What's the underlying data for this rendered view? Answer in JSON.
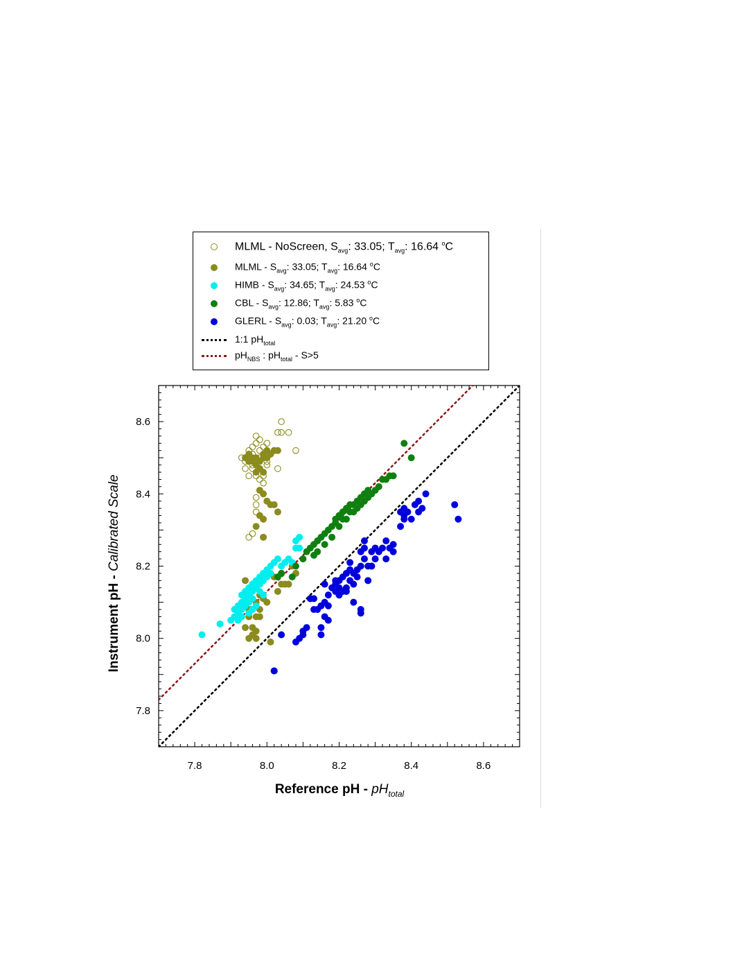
{
  "chart_data": {
    "type": "scatter",
    "xlabel": "Reference pH - pH",
    "xlabel_prefix": "Reference pH - ",
    "xlabel_var": "pH",
    "xlabel_sub": "total",
    "ylabel": "Instrument pH - Calibrated Scale",
    "ylabel_prefix": "Instrument pH - ",
    "ylabel_italic": "Calibrated Scale",
    "xlim": [
      7.7,
      8.7
    ],
    "ylim": [
      7.7,
      8.7
    ],
    "xticks": [
      "7.8",
      "8.0",
      "8.2",
      "8.4",
      "8.6"
    ],
    "yticks": [
      "7.8",
      "8.0",
      "8.2",
      "8.4",
      "8.6"
    ],
    "grid": false,
    "legend_position": "above",
    "legend": [
      {
        "key": "mlml_noscreen",
        "parts": [
          "MLML - NoScreen, S",
          "avg",
          ": 33.05; T",
          "avg",
          ": 16.64 ",
          "o",
          "C"
        ]
      },
      {
        "key": "mlml",
        "parts": [
          "MLML - S",
          "avg",
          ": 33.05; T",
          "avg",
          ": 16.64 ",
          "o",
          "C"
        ]
      },
      {
        "key": "himb",
        "parts": [
          "HIMB - S",
          "avg",
          ": 34.65; T",
          "avg",
          ": 24.53 ",
          "o",
          "C"
        ]
      },
      {
        "key": "cbl",
        "parts": [
          "CBL - S",
          "avg",
          ": 12.86; T",
          "avg",
          ": 5.83 ",
          "o",
          "C"
        ]
      },
      {
        "key": "glerl",
        "parts": [
          "GLERL - S",
          "avg",
          ": 0.03; T",
          "avg",
          ": 21.20 ",
          "o",
          "C"
        ]
      },
      {
        "key": "line_11",
        "parts": [
          "1:1 pH",
          "total"
        ]
      },
      {
        "key": "line_nbs",
        "parts": [
          "pH",
          "NBS",
          " : pH",
          "total",
          " - S>5"
        ]
      }
    ],
    "lines": [
      {
        "key": "line_11",
        "color": "#000000",
        "style": "dotted",
        "x": [
          7.7,
          8.7
        ],
        "y": [
          7.7,
          8.7
        ]
      },
      {
        "key": "line_nbs",
        "color": "#8b1a1a",
        "style": "dotted",
        "x": [
          7.7,
          8.57
        ],
        "y": [
          7.83,
          8.7
        ]
      }
    ],
    "series": [
      {
        "key": "mlml_noscreen",
        "color": "#8b8b1e",
        "hollow": true,
        "points": [
          [
            7.94,
            8.49
          ],
          [
            7.95,
            8.5
          ],
          [
            7.95,
            8.52
          ],
          [
            7.96,
            8.51
          ],
          [
            7.96,
            8.53
          ],
          [
            7.97,
            8.5
          ],
          [
            7.97,
            8.54
          ],
          [
            7.98,
            8.55
          ],
          [
            7.98,
            8.52
          ],
          [
            7.99,
            8.53
          ],
          [
            7.99,
            8.51
          ],
          [
            8.0,
            8.54
          ],
          [
            8.0,
            8.5
          ],
          [
            7.97,
            8.56
          ],
          [
            7.96,
            8.48
          ],
          [
            7.95,
            8.45
          ],
          [
            7.97,
            8.45
          ],
          [
            7.96,
            8.47
          ],
          [
            7.98,
            8.47
          ],
          [
            8.0,
            8.48
          ],
          [
            8.01,
            8.51
          ],
          [
            8.02,
            8.52
          ],
          [
            8.03,
            8.57
          ],
          [
            8.04,
            8.6
          ],
          [
            8.04,
            8.57
          ],
          [
            8.06,
            8.57
          ],
          [
            8.08,
            8.52
          ],
          [
            8.03,
            8.47
          ],
          [
            7.99,
            8.45
          ],
          [
            7.99,
            8.43
          ],
          [
            7.98,
            8.44
          ],
          [
            7.97,
            8.39
          ],
          [
            7.97,
            8.37
          ],
          [
            7.97,
            8.35
          ],
          [
            7.99,
            8.33
          ],
          [
            7.95,
            8.28
          ],
          [
            7.96,
            8.29
          ],
          [
            7.93,
            8.5
          ],
          [
            7.94,
            8.47
          ],
          [
            7.98,
            8.5
          ],
          [
            7.96,
            8.49
          ],
          [
            8.0,
            8.49
          ]
        ]
      },
      {
        "key": "mlml",
        "color": "#8b8b1e",
        "hollow": false,
        "points": [
          [
            7.94,
            8.5
          ],
          [
            7.95,
            8.49
          ],
          [
            7.95,
            8.51
          ],
          [
            7.96,
            8.5
          ],
          [
            7.96,
            8.49
          ],
          [
            7.97,
            8.5
          ],
          [
            7.97,
            8.48
          ],
          [
            7.98,
            8.49
          ],
          [
            7.98,
            8.47
          ],
          [
            7.99,
            8.5
          ],
          [
            7.99,
            8.51
          ],
          [
            8.0,
            8.5
          ],
          [
            8.0,
            8.52
          ],
          [
            8.01,
            8.51
          ],
          [
            8.02,
            8.52
          ],
          [
            8.03,
            8.52
          ],
          [
            7.97,
            8.46
          ],
          [
            7.99,
            8.46
          ],
          [
            7.98,
            8.41
          ],
          [
            7.99,
            8.4
          ],
          [
            8.0,
            8.38
          ],
          [
            8.01,
            8.37
          ],
          [
            8.02,
            8.37
          ],
          [
            8.03,
            8.35
          ],
          [
            7.98,
            8.34
          ],
          [
            7.99,
            8.33
          ],
          [
            7.97,
            8.31
          ],
          [
            7.99,
            8.28
          ],
          [
            7.94,
            8.16
          ],
          [
            7.96,
            8.15
          ],
          [
            7.97,
            8.1
          ],
          [
            7.98,
            8.12
          ],
          [
            7.99,
            8.11
          ],
          [
            8.0,
            8.1
          ],
          [
            7.98,
            8.08
          ],
          [
            7.96,
            8.08
          ],
          [
            7.95,
            8.06
          ],
          [
            7.97,
            8.06
          ],
          [
            7.98,
            8.06
          ],
          [
            7.96,
            8.03
          ],
          [
            7.97,
            8.02
          ],
          [
            7.96,
            8.01
          ],
          [
            7.95,
            8.0
          ],
          [
            7.97,
            8.0
          ],
          [
            8.01,
            7.99
          ],
          [
            8.03,
            8.13
          ],
          [
            8.04,
            8.15
          ],
          [
            8.05,
            8.15
          ],
          [
            8.06,
            8.15
          ],
          [
            8.07,
            8.2
          ],
          [
            8.08,
            8.18
          ],
          [
            8.04,
            8.18
          ],
          [
            8.02,
            8.17
          ],
          [
            7.95,
            8.08
          ],
          [
            7.94,
            8.03
          ]
        ]
      },
      {
        "key": "himb",
        "color": "#00eeee",
        "hollow": false,
        "points": [
          [
            7.82,
            8.01
          ],
          [
            7.87,
            8.04
          ],
          [
            7.9,
            8.05
          ],
          [
            7.91,
            8.06
          ],
          [
            7.91,
            8.08
          ],
          [
            7.92,
            8.07
          ],
          [
            7.92,
            8.09
          ],
          [
            7.93,
            8.1
          ],
          [
            7.93,
            8.12
          ],
          [
            7.94,
            8.11
          ],
          [
            7.94,
            8.13
          ],
          [
            7.95,
            8.12
          ],
          [
            7.95,
            8.14
          ],
          [
            7.96,
            8.13
          ],
          [
            7.96,
            8.15
          ],
          [
            7.97,
            8.14
          ],
          [
            7.97,
            8.16
          ],
          [
            7.98,
            8.15
          ],
          [
            7.98,
            8.17
          ],
          [
            7.99,
            8.16
          ],
          [
            7.99,
            8.18
          ],
          [
            8.0,
            8.17
          ],
          [
            8.0,
            8.19
          ],
          [
            8.01,
            8.18
          ],
          [
            8.01,
            8.2
          ],
          [
            8.02,
            8.21
          ],
          [
            8.03,
            8.22
          ],
          [
            8.04,
            8.2
          ],
          [
            8.05,
            8.21
          ],
          [
            8.06,
            8.22
          ],
          [
            8.07,
            8.21
          ],
          [
            8.08,
            8.25
          ],
          [
            8.08,
            8.27
          ],
          [
            8.09,
            8.28
          ],
          [
            8.09,
            8.25
          ],
          [
            7.93,
            8.08
          ],
          [
            7.94,
            8.09
          ],
          [
            7.95,
            8.1
          ],
          [
            7.96,
            8.11
          ],
          [
            7.97,
            8.09
          ],
          [
            7.92,
            8.05
          ],
          [
            7.93,
            8.06
          ],
          [
            7.95,
            8.07
          ],
          [
            7.96,
            8.08
          ],
          [
            7.98,
            8.13
          ],
          [
            7.99,
            8.12
          ]
        ]
      },
      {
        "key": "cbl",
        "color": "#0f800f",
        "hollow": false,
        "points": [
          [
            8.07,
            8.17
          ],
          [
            8.1,
            8.22
          ],
          [
            8.11,
            8.24
          ],
          [
            8.12,
            8.25
          ],
          [
            8.13,
            8.26
          ],
          [
            8.14,
            8.27
          ],
          [
            8.15,
            8.28
          ],
          [
            8.16,
            8.29
          ],
          [
            8.17,
            8.3
          ],
          [
            8.18,
            8.31
          ],
          [
            8.19,
            8.32
          ],
          [
            8.19,
            8.33
          ],
          [
            8.2,
            8.34
          ],
          [
            8.21,
            8.35
          ],
          [
            8.22,
            8.36
          ],
          [
            8.23,
            8.37
          ],
          [
            8.24,
            8.35
          ],
          [
            8.25,
            8.36
          ],
          [
            8.25,
            8.38
          ],
          [
            8.26,
            8.37
          ],
          [
            8.26,
            8.39
          ],
          [
            8.27,
            8.38
          ],
          [
            8.27,
            8.4
          ],
          [
            8.28,
            8.39
          ],
          [
            8.29,
            8.4
          ],
          [
            8.3,
            8.41
          ],
          [
            8.31,
            8.42
          ],
          [
            8.32,
            8.44
          ],
          [
            8.33,
            8.44
          ],
          [
            8.34,
            8.45
          ],
          [
            8.35,
            8.45
          ],
          [
            8.38,
            8.54
          ],
          [
            8.4,
            8.5
          ],
          [
            8.22,
            8.33
          ],
          [
            8.21,
            8.33
          ],
          [
            8.23,
            8.35
          ],
          [
            8.13,
            8.23
          ],
          [
            8.14,
            8.24
          ],
          [
            8.16,
            8.26
          ],
          [
            8.18,
            8.28
          ],
          [
            8.2,
            8.31
          ],
          [
            8.24,
            8.37
          ],
          [
            8.28,
            8.41
          ],
          [
            8.03,
            8.17
          ],
          [
            8.04,
            8.18
          ],
          [
            8.08,
            8.2
          ]
        ]
      },
      {
        "key": "glerl",
        "color": "#0000dd",
        "hollow": false,
        "points": [
          [
            8.02,
            7.91
          ],
          [
            8.02,
            7.91
          ],
          [
            8.04,
            8.01
          ],
          [
            8.08,
            7.99
          ],
          [
            8.09,
            8.0
          ],
          [
            8.1,
            8.01
          ],
          [
            8.1,
            8.02
          ],
          [
            8.11,
            8.03
          ],
          [
            8.12,
            8.11
          ],
          [
            8.13,
            8.11
          ],
          [
            8.13,
            8.08
          ],
          [
            8.14,
            8.08
          ],
          [
            8.15,
            8.01
          ],
          [
            8.15,
            8.03
          ],
          [
            8.15,
            8.09
          ],
          [
            8.16,
            8.06
          ],
          [
            8.16,
            8.1
          ],
          [
            8.16,
            8.15
          ],
          [
            8.17,
            8.05
          ],
          [
            8.17,
            8.09
          ],
          [
            8.17,
            8.12
          ],
          [
            8.18,
            8.14
          ],
          [
            8.19,
            8.13
          ],
          [
            8.19,
            8.15
          ],
          [
            8.2,
            8.12
          ],
          [
            8.2,
            8.14
          ],
          [
            8.2,
            8.16
          ],
          [
            8.21,
            8.13
          ],
          [
            8.21,
            8.17
          ],
          [
            8.22,
            8.14
          ],
          [
            8.22,
            8.18
          ],
          [
            8.23,
            8.16
          ],
          [
            8.23,
            8.21
          ],
          [
            8.23,
            8.19
          ],
          [
            8.24,
            8.1
          ],
          [
            8.24,
            8.15
          ],
          [
            8.24,
            8.18
          ],
          [
            8.25,
            8.19
          ],
          [
            8.25,
            8.17
          ],
          [
            8.26,
            8.08
          ],
          [
            8.26,
            8.07
          ],
          [
            8.26,
            8.2
          ],
          [
            8.26,
            8.24
          ],
          [
            8.27,
            8.22
          ],
          [
            8.27,
            8.25
          ],
          [
            8.27,
            8.27
          ],
          [
            8.28,
            8.2
          ],
          [
            8.28,
            8.16
          ],
          [
            8.29,
            8.24
          ],
          [
            8.29,
            8.2
          ],
          [
            8.3,
            8.22
          ],
          [
            8.3,
            8.25
          ],
          [
            8.31,
            8.24
          ],
          [
            8.32,
            8.25
          ],
          [
            8.33,
            8.27
          ],
          [
            8.33,
            8.22
          ],
          [
            8.34,
            8.25
          ],
          [
            8.35,
            8.26
          ],
          [
            8.35,
            8.24
          ],
          [
            8.37,
            8.31
          ],
          [
            8.38,
            8.33
          ],
          [
            8.38,
            8.36
          ],
          [
            8.39,
            8.35
          ],
          [
            8.4,
            8.33
          ],
          [
            8.41,
            8.37
          ],
          [
            8.42,
            8.38
          ],
          [
            8.42,
            8.35
          ],
          [
            8.43,
            8.36
          ],
          [
            8.44,
            8.4
          ],
          [
            8.52,
            8.37
          ],
          [
            8.53,
            8.33
          ],
          [
            8.38,
            8.34
          ],
          [
            8.37,
            8.35
          ],
          [
            8.29,
            8.2
          ],
          [
            8.22,
            8.13
          ],
          [
            8.19,
            8.16
          ]
        ]
      }
    ]
  }
}
